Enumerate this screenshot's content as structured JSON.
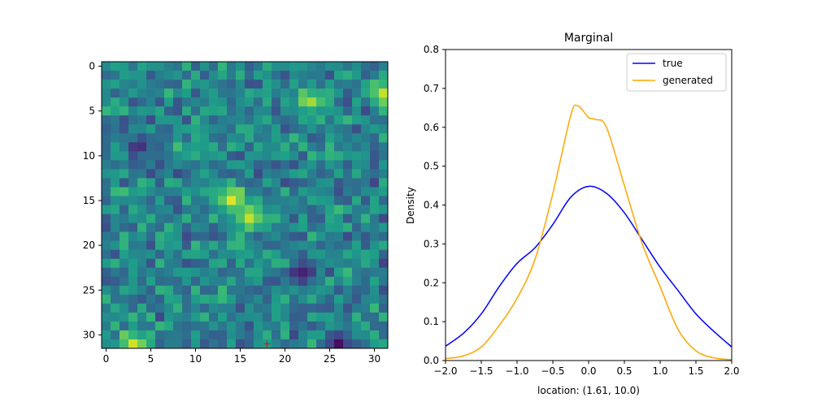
{
  "chart_data": [
    {
      "type": "heatmap",
      "rows": 32,
      "cols": 32,
      "colormap": "viridis",
      "xlim": [
        -0.5,
        31.5
      ],
      "ylim": [
        31.5,
        -0.5
      ],
      "xticks": [
        0,
        5,
        10,
        15,
        20,
        25,
        30
      ],
      "yticks": [
        0,
        5,
        10,
        15,
        20,
        25,
        30
      ],
      "marker": {
        "x": 18,
        "y": 31,
        "symbol": "+",
        "color": "#ff0000"
      },
      "hotspots": [
        {
          "row": 15,
          "col": 14,
          "value": 1.0
        },
        {
          "row": 17,
          "col": 16,
          "value": 0.95
        },
        {
          "row": 4,
          "col": 23,
          "value": 0.9
        },
        {
          "row": 3,
          "col": 31,
          "value": 0.95
        },
        {
          "row": 31,
          "col": 3,
          "value": 1.0
        },
        {
          "row": 31,
          "col": 26,
          "value": 0.0
        },
        {
          "row": 23,
          "col": 22,
          "value": 0.05
        },
        {
          "row": 9,
          "col": 4,
          "value": 0.1
        }
      ]
    },
    {
      "type": "line",
      "title": "Marginal",
      "xlabel": "location: (1.61, 10.0)",
      "ylabel": "Density",
      "xlim": [
        -2.0,
        2.0
      ],
      "ylim": [
        0.0,
        0.8
      ],
      "xticks": [
        "-2.0",
        "-1.5",
        "-1.0",
        "-0.5",
        "0.0",
        "0.5",
        "1.0",
        "1.5",
        "2.0"
      ],
      "yticks": [
        "0.0",
        "0.1",
        "0.2",
        "0.3",
        "0.4",
        "0.5",
        "0.6",
        "0.7",
        "0.8"
      ],
      "legend_position": "top-right",
      "series": [
        {
          "name": "true",
          "color": "#0000ff",
          "x": [
            -2.0,
            -1.75,
            -1.5,
            -1.25,
            -1.0,
            -0.75,
            -0.5,
            -0.25,
            0.0,
            0.25,
            0.5,
            0.75,
            1.0,
            1.25,
            1.5,
            1.75,
            2.0
          ],
          "y": [
            0.037,
            0.07,
            0.12,
            0.19,
            0.25,
            0.29,
            0.35,
            0.42,
            0.448,
            0.43,
            0.38,
            0.31,
            0.24,
            0.18,
            0.12,
            0.075,
            0.035
          ]
        },
        {
          "name": "generated",
          "color": "#ffa500",
          "x": [
            -2.0,
            -1.75,
            -1.5,
            -1.25,
            -1.0,
            -0.75,
            -0.5,
            -0.25,
            -0.15,
            0.0,
            0.1,
            0.25,
            0.5,
            0.75,
            1.0,
            1.25,
            1.5,
            1.75,
            2.0
          ],
          "y": [
            0.005,
            0.012,
            0.035,
            0.09,
            0.16,
            0.26,
            0.43,
            0.63,
            0.655,
            0.625,
            0.62,
            0.6,
            0.45,
            0.3,
            0.19,
            0.08,
            0.025,
            0.007,
            0.002
          ]
        }
      ]
    }
  ]
}
